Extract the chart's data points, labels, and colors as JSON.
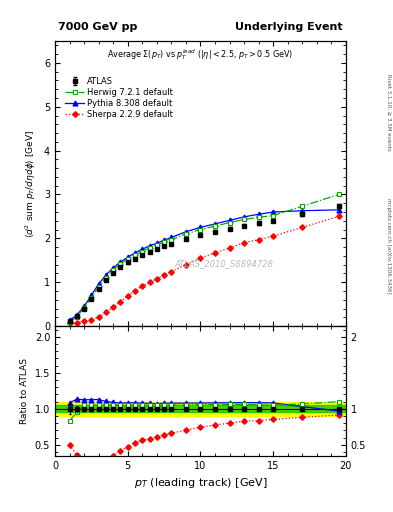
{
  "title_left": "7000 GeV pp",
  "title_right": "Underlying Event",
  "plot_title": "Average $\\Sigma(p_T)$ vs $p_T^{lead}$ ($|\\eta| < 2.5$, $p_T > 0.5$ GeV)",
  "xlabel": "$p_T$ (leading track) [GeV]",
  "ylabel_main": "$\\langle d^2$ sum $p_T/d\\eta d\\phi\\rangle$ [GeV]",
  "ylabel_ratio": "Ratio to ATLAS",
  "watermark": "ATLAS_2010_S8894728",
  "right_label": "mcplots.cern.ch [arXiv:1306.3436]",
  "right_label2": "Rivet 3.1.10, ≥ 3.5M events",
  "xlim": [
    0,
    20
  ],
  "ylim_main": [
    0,
    6.5
  ],
  "ylim_ratio": [
    0.35,
    2.15
  ],
  "atlas_x": [
    1.0,
    1.5,
    2.0,
    2.5,
    3.0,
    3.5,
    4.0,
    4.5,
    5.0,
    5.5,
    6.0,
    6.5,
    7.0,
    7.5,
    8.0,
    9.0,
    10.0,
    11.0,
    12.0,
    13.0,
    14.0,
    15.0,
    17.0,
    19.5
  ],
  "atlas_y": [
    0.12,
    0.22,
    0.4,
    0.62,
    0.85,
    1.05,
    1.22,
    1.35,
    1.45,
    1.54,
    1.62,
    1.7,
    1.76,
    1.82,
    1.87,
    1.99,
    2.08,
    2.15,
    2.22,
    2.29,
    2.35,
    2.4,
    2.55,
    2.73
  ],
  "atlas_yerr": [
    0.008,
    0.01,
    0.013,
    0.016,
    0.018,
    0.02,
    0.022,
    0.023,
    0.024,
    0.024,
    0.025,
    0.026,
    0.027,
    0.028,
    0.028,
    0.03,
    0.032,
    0.033,
    0.035,
    0.036,
    0.037,
    0.038,
    0.042,
    0.048
  ],
  "herwig_x": [
    1.0,
    1.5,
    2.0,
    2.5,
    3.0,
    3.5,
    4.0,
    4.5,
    5.0,
    5.5,
    6.0,
    6.5,
    7.0,
    7.5,
    8.0,
    9.0,
    10.0,
    11.0,
    12.0,
    13.0,
    14.0,
    15.0,
    17.0,
    19.5
  ],
  "herwig_y": [
    0.1,
    0.21,
    0.42,
    0.65,
    0.9,
    1.1,
    1.28,
    1.42,
    1.52,
    1.62,
    1.7,
    1.78,
    1.85,
    1.91,
    1.97,
    2.1,
    2.2,
    2.28,
    2.36,
    2.43,
    2.48,
    2.52,
    2.73,
    3.0
  ],
  "pythia_x": [
    1.0,
    1.5,
    2.0,
    2.5,
    3.0,
    3.5,
    4.0,
    4.5,
    5.0,
    5.5,
    6.0,
    6.5,
    7.0,
    7.5,
    8.0,
    9.0,
    10.0,
    11.0,
    12.0,
    13.0,
    14.0,
    15.0,
    17.0,
    19.5
  ],
  "pythia_y": [
    0.13,
    0.25,
    0.45,
    0.7,
    0.96,
    1.16,
    1.33,
    1.46,
    1.57,
    1.67,
    1.75,
    1.83,
    1.89,
    1.96,
    2.02,
    2.15,
    2.25,
    2.33,
    2.41,
    2.49,
    2.55,
    2.6,
    2.63,
    2.65
  ],
  "sherpa_x": [
    1.0,
    1.5,
    2.0,
    2.5,
    3.0,
    3.5,
    4.0,
    4.5,
    5.0,
    5.5,
    6.0,
    6.5,
    7.0,
    7.5,
    8.0,
    9.0,
    10.0,
    11.0,
    12.0,
    13.0,
    14.0,
    15.0,
    17.0,
    19.5
  ],
  "sherpa_y": [
    0.06,
    0.078,
    0.105,
    0.145,
    0.21,
    0.31,
    0.43,
    0.56,
    0.69,
    0.81,
    0.91,
    1.0,
    1.08,
    1.16,
    1.24,
    1.4,
    1.55,
    1.67,
    1.78,
    1.9,
    1.97,
    2.05,
    2.25,
    2.5
  ],
  "atlas_color": "#000000",
  "herwig_color": "#00aa00",
  "pythia_color": "#0000ff",
  "sherpa_color": "#ff0000",
  "band_yellow": "#ffff00",
  "band_green": "#00bb00",
  "background_color": "#ffffff"
}
